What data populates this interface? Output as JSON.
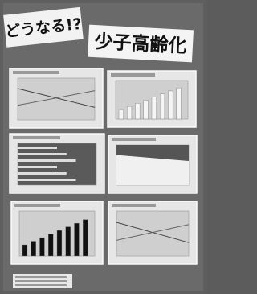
{
  "poster": {
    "title_part1": "どうなる!?",
    "title_part2": "少子高齢化"
  }
}
